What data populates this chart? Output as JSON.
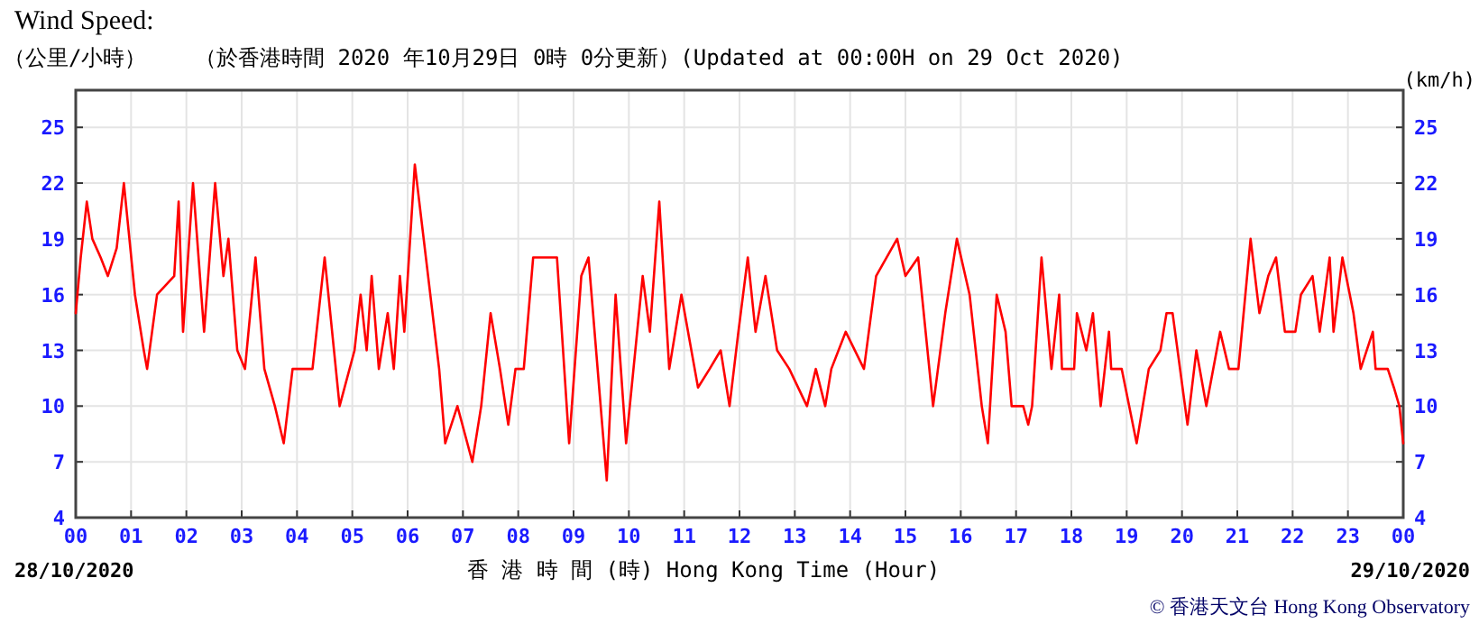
{
  "chart_data": {
    "type": "line",
    "title": "Wind Speed:",
    "subtitle": "（於香港時間 2020 年10月29日 0時 0分更新）(Updated at 00:00H on 29 Oct 2020)",
    "ylabel": "（公里/小時）",
    "y2label": "(km/h)",
    "xlabel": "香 港 時 間 (時) Hong Kong Time (Hour)",
    "annotations": [
      "28/10/2020",
      "29/10/2020",
      "© 香港天文台 Hong Kong Observatory"
    ],
    "xlim": [
      0,
      24
    ],
    "ylim": [
      4,
      27
    ],
    "y2lim": [
      4,
      27
    ],
    "xticks": [
      {
        "value": 0,
        "label": "00"
      },
      {
        "value": 1,
        "label": "01"
      },
      {
        "value": 2,
        "label": "02"
      },
      {
        "value": 3,
        "label": "03"
      },
      {
        "value": 4,
        "label": "04"
      },
      {
        "value": 5,
        "label": "05"
      },
      {
        "value": 6,
        "label": "06"
      },
      {
        "value": 7,
        "label": "07"
      },
      {
        "value": 8,
        "label": "08"
      },
      {
        "value": 9,
        "label": "09"
      },
      {
        "value": 10,
        "label": "10"
      },
      {
        "value": 11,
        "label": "11"
      },
      {
        "value": 12,
        "label": "12"
      },
      {
        "value": 13,
        "label": "13"
      },
      {
        "value": 14,
        "label": "14"
      },
      {
        "value": 15,
        "label": "15"
      },
      {
        "value": 16,
        "label": "16"
      },
      {
        "value": 17,
        "label": "17"
      },
      {
        "value": 18,
        "label": "18"
      },
      {
        "value": 19,
        "label": "19"
      },
      {
        "value": 20,
        "label": "20"
      },
      {
        "value": 21,
        "label": "21"
      },
      {
        "value": 22,
        "label": "22"
      },
      {
        "value": 23,
        "label": "23"
      },
      {
        "value": 24,
        "label": "00"
      }
    ],
    "yticks": [
      4,
      7,
      10,
      13,
      16,
      19,
      22,
      25
    ],
    "y2ticks": [
      4,
      7,
      10,
      13,
      16,
      19,
      22,
      25
    ],
    "grid": true,
    "series": [
      {
        "color": "#ff0000",
        "x": [
          0,
          0.09,
          0.2,
          0.3,
          0.45,
          0.58,
          0.74,
          0.87,
          1.07,
          1.23,
          1.29,
          1.47,
          1.78,
          1.86,
          1.94,
          2.12,
          2.32,
          2.52,
          2.67,
          2.76,
          2.92,
          3.06,
          3.25,
          3.41,
          3.6,
          3.76,
          3.92,
          4.28,
          4.5,
          4.77,
          5.04,
          5.15,
          5.26,
          5.35,
          5.48,
          5.64,
          5.75,
          5.86,
          5.94,
          6.13,
          6.37,
          6.57,
          6.68,
          6.9,
          7.17,
          7.33,
          7.5,
          7.67,
          7.82,
          7.95,
          8.1,
          8.27,
          8.7,
          8.92,
          9.14,
          9.27,
          9.6,
          9.76,
          9.95,
          10.25,
          10.38,
          10.55,
          10.73,
          10.95,
          11.25,
          11.46,
          11.66,
          11.82,
          11.98,
          12.15,
          12.29,
          12.47,
          12.68,
          12.9,
          13.22,
          13.38,
          13.55,
          13.66,
          13.92,
          14.25,
          14.47,
          14.85,
          15.0,
          15.23,
          15.5,
          15.72,
          15.93,
          16.16,
          16.38,
          16.49,
          16.65,
          16.81,
          16.92,
          17.13,
          17.22,
          17.29,
          17.46,
          17.64,
          17.78,
          17.83,
          18.05,
          18.1,
          18.27,
          18.39,
          18.53,
          18.68,
          18.72,
          18.91,
          19.18,
          19.4,
          19.61,
          19.72,
          19.83,
          20.1,
          20.26,
          20.44,
          20.69,
          20.85,
          21.02,
          21.24,
          21.4,
          21.56,
          21.7,
          21.86,
          22.05,
          22.15,
          22.36,
          22.49,
          22.67,
          22.74,
          22.9,
          23.1,
          23.23,
          23.45,
          23.5,
          23.72,
          23.83,
          23.93,
          24
        ],
        "values": [
          15,
          18,
          21,
          19,
          18,
          17,
          18.5,
          22,
          16,
          13,
          12,
          16,
          17,
          21,
          14,
          22,
          14,
          22,
          17,
          19,
          13,
          12,
          18,
          12,
          10,
          8,
          12,
          12,
          18,
          10,
          13,
          16,
          13,
          17,
          12,
          15,
          12,
          17,
          14,
          23,
          17,
          12,
          8,
          10,
          7,
          10,
          15,
          12,
          9,
          12,
          12,
          18,
          18,
          8,
          17,
          18,
          6,
          16,
          8,
          17,
          14,
          21,
          12,
          16,
          11,
          12,
          13,
          10,
          14,
          18,
          14,
          17,
          13,
          12,
          10,
          12,
          10,
          12,
          14,
          12,
          17,
          19,
          17,
          18,
          10,
          15,
          19,
          16,
          10,
          8,
          16,
          14,
          10,
          10,
          9,
          10,
          18,
          12,
          16,
          12,
          12,
          15,
          13,
          15,
          10,
          14,
          12,
          12,
          8,
          12,
          13,
          15,
          15,
          9,
          13,
          10,
          14,
          12,
          12,
          19,
          15,
          17,
          18,
          14,
          14,
          16,
          17,
          14,
          18,
          14,
          18,
          15,
          12,
          14,
          12,
          12,
          11,
          10,
          8
        ]
      }
    ]
  }
}
